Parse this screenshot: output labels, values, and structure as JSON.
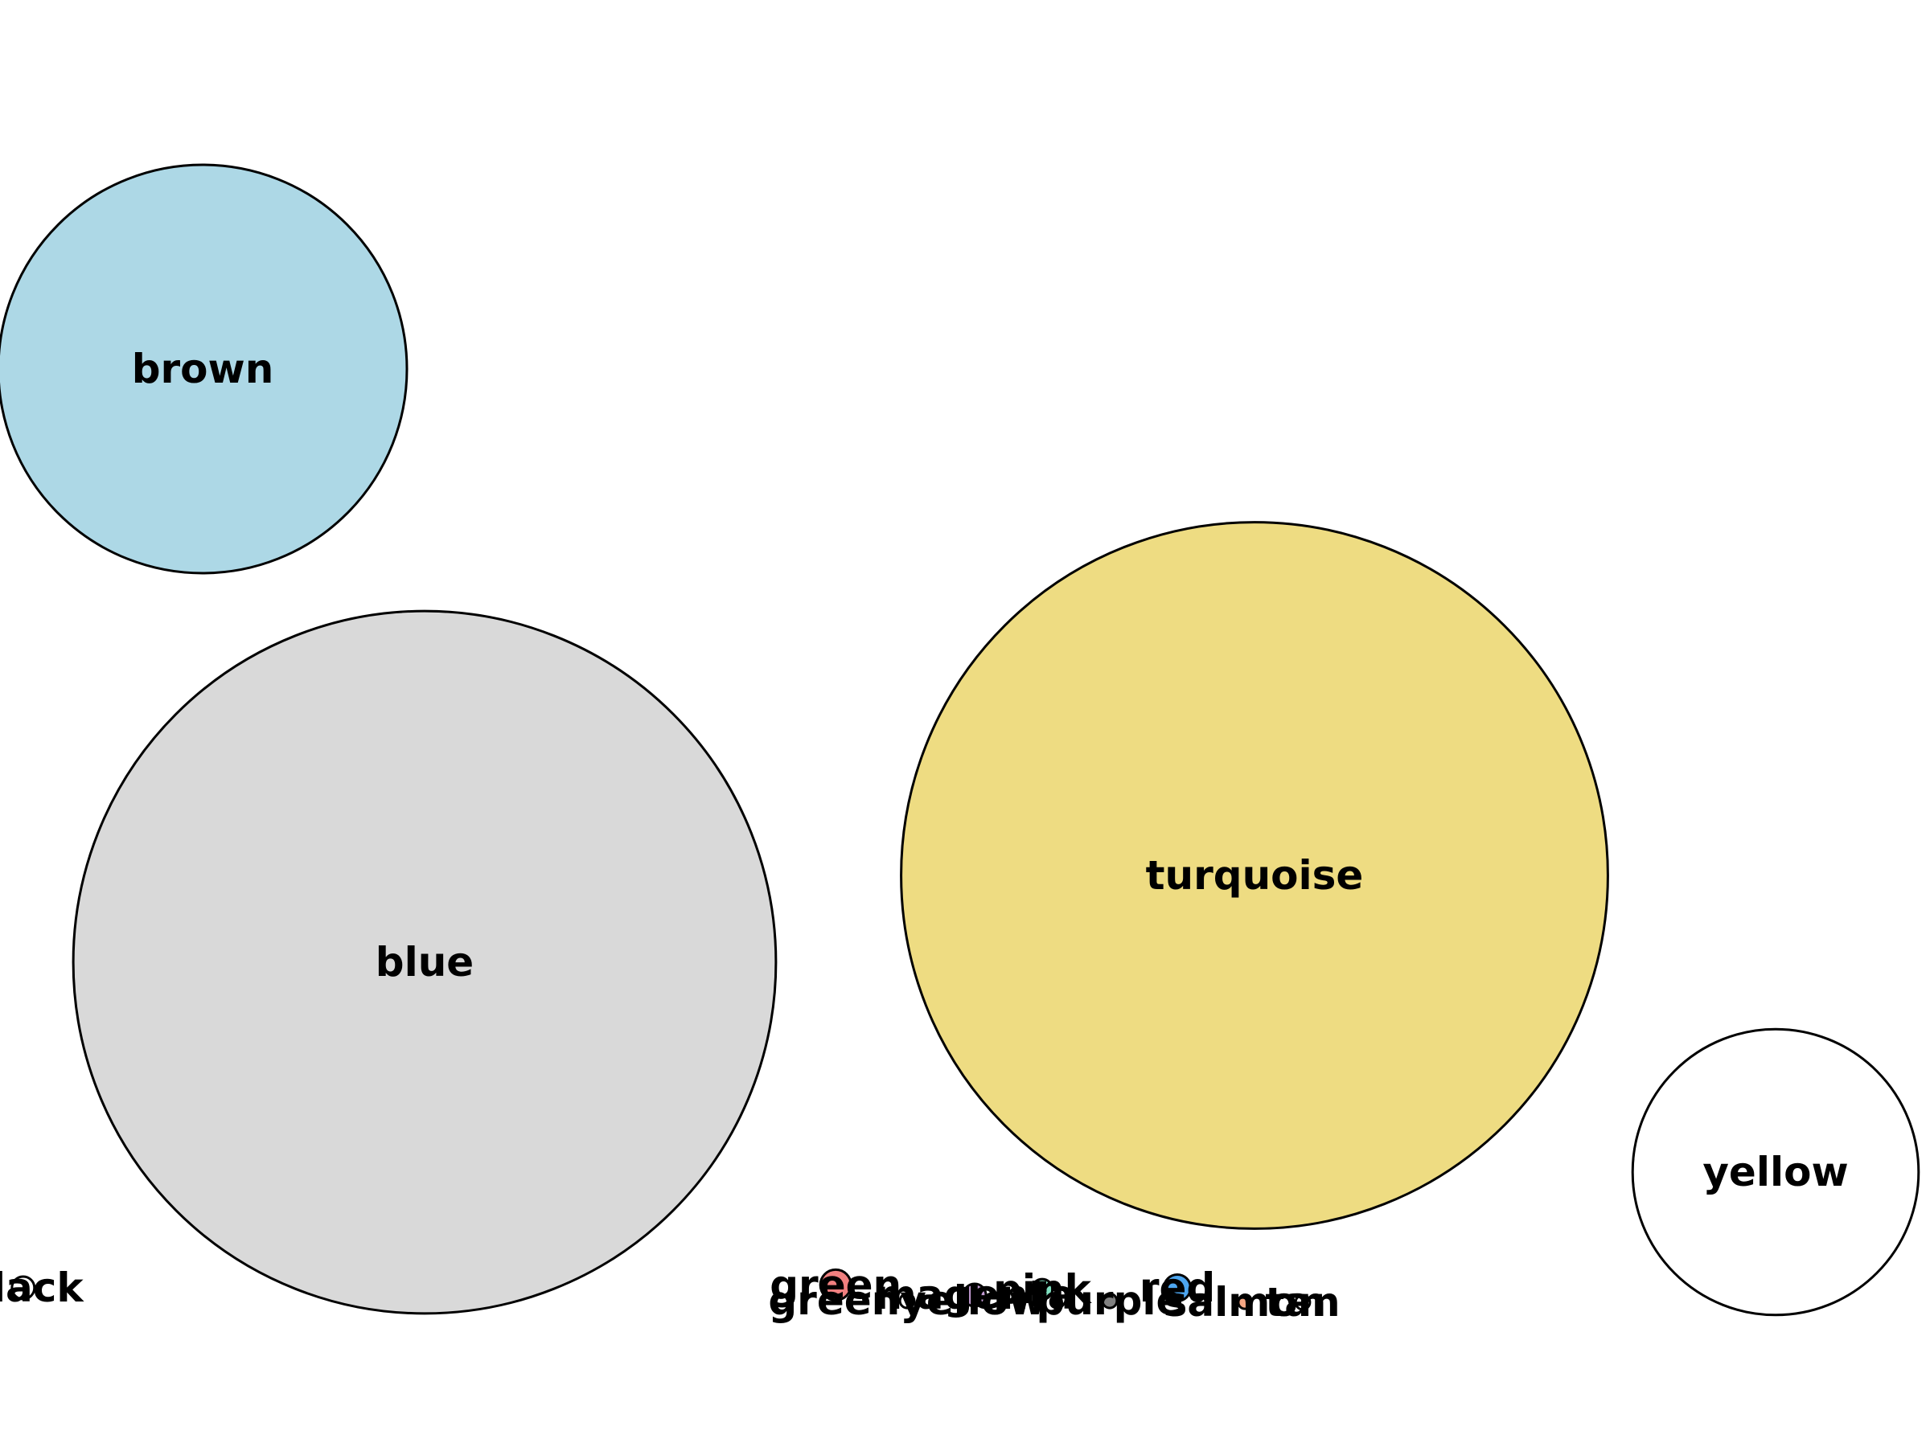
{
  "chart_data": {
    "type": "bubble",
    "title": "",
    "xlabel": "",
    "ylabel": "",
    "grid": false,
    "legend": "none",
    "axes_visible": false,
    "series": [
      {
        "label": "brown",
        "fill": "#add8e6",
        "x": 0.105,
        "y": 0.745,
        "size": 1.0
      },
      {
        "label": "blue",
        "fill": "#d9d9d9",
        "x": 0.22,
        "y": 0.335,
        "size": 1.72
      },
      {
        "label": "turquoise",
        "fill": "#eedc82",
        "x": 0.65,
        "y": 0.395,
        "size": 1.73
      },
      {
        "label": "yellow",
        "fill": "#ffffff",
        "x": 0.92,
        "y": 0.19,
        "size": 0.7
      },
      {
        "label": "black",
        "fill": "#ffffff",
        "x": 0.012,
        "y": 0.11,
        "size": 0.055
      },
      {
        "label": "green",
        "fill": "#f08080",
        "x": 0.433,
        "y": 0.112,
        "size": 0.075
      },
      {
        "label": "greenyellow",
        "fill": "#ffffff",
        "x": 0.47,
        "y": 0.101,
        "size": 0.035
      },
      {
        "label": "magenta",
        "fill": "#c39bd3",
        "x": 0.505,
        "y": 0.105,
        "size": 0.055
      },
      {
        "label": "pink",
        "fill": "#7fe0c0",
        "x": 0.54,
        "y": 0.109,
        "size": 0.05
      },
      {
        "label": "purple",
        "fill": "#808080",
        "x": 0.575,
        "y": 0.101,
        "size": 0.035
      },
      {
        "label": "red",
        "fill": "#4da6f0",
        "x": 0.61,
        "y": 0.11,
        "size": 0.065
      },
      {
        "label": "salmon",
        "fill": "#f4a582",
        "x": 0.645,
        "y": 0.1,
        "size": 0.032
      },
      {
        "label": "tan",
        "fill": "#ffffff",
        "x": 0.675,
        "y": 0.1,
        "size": 0.035
      }
    ]
  }
}
